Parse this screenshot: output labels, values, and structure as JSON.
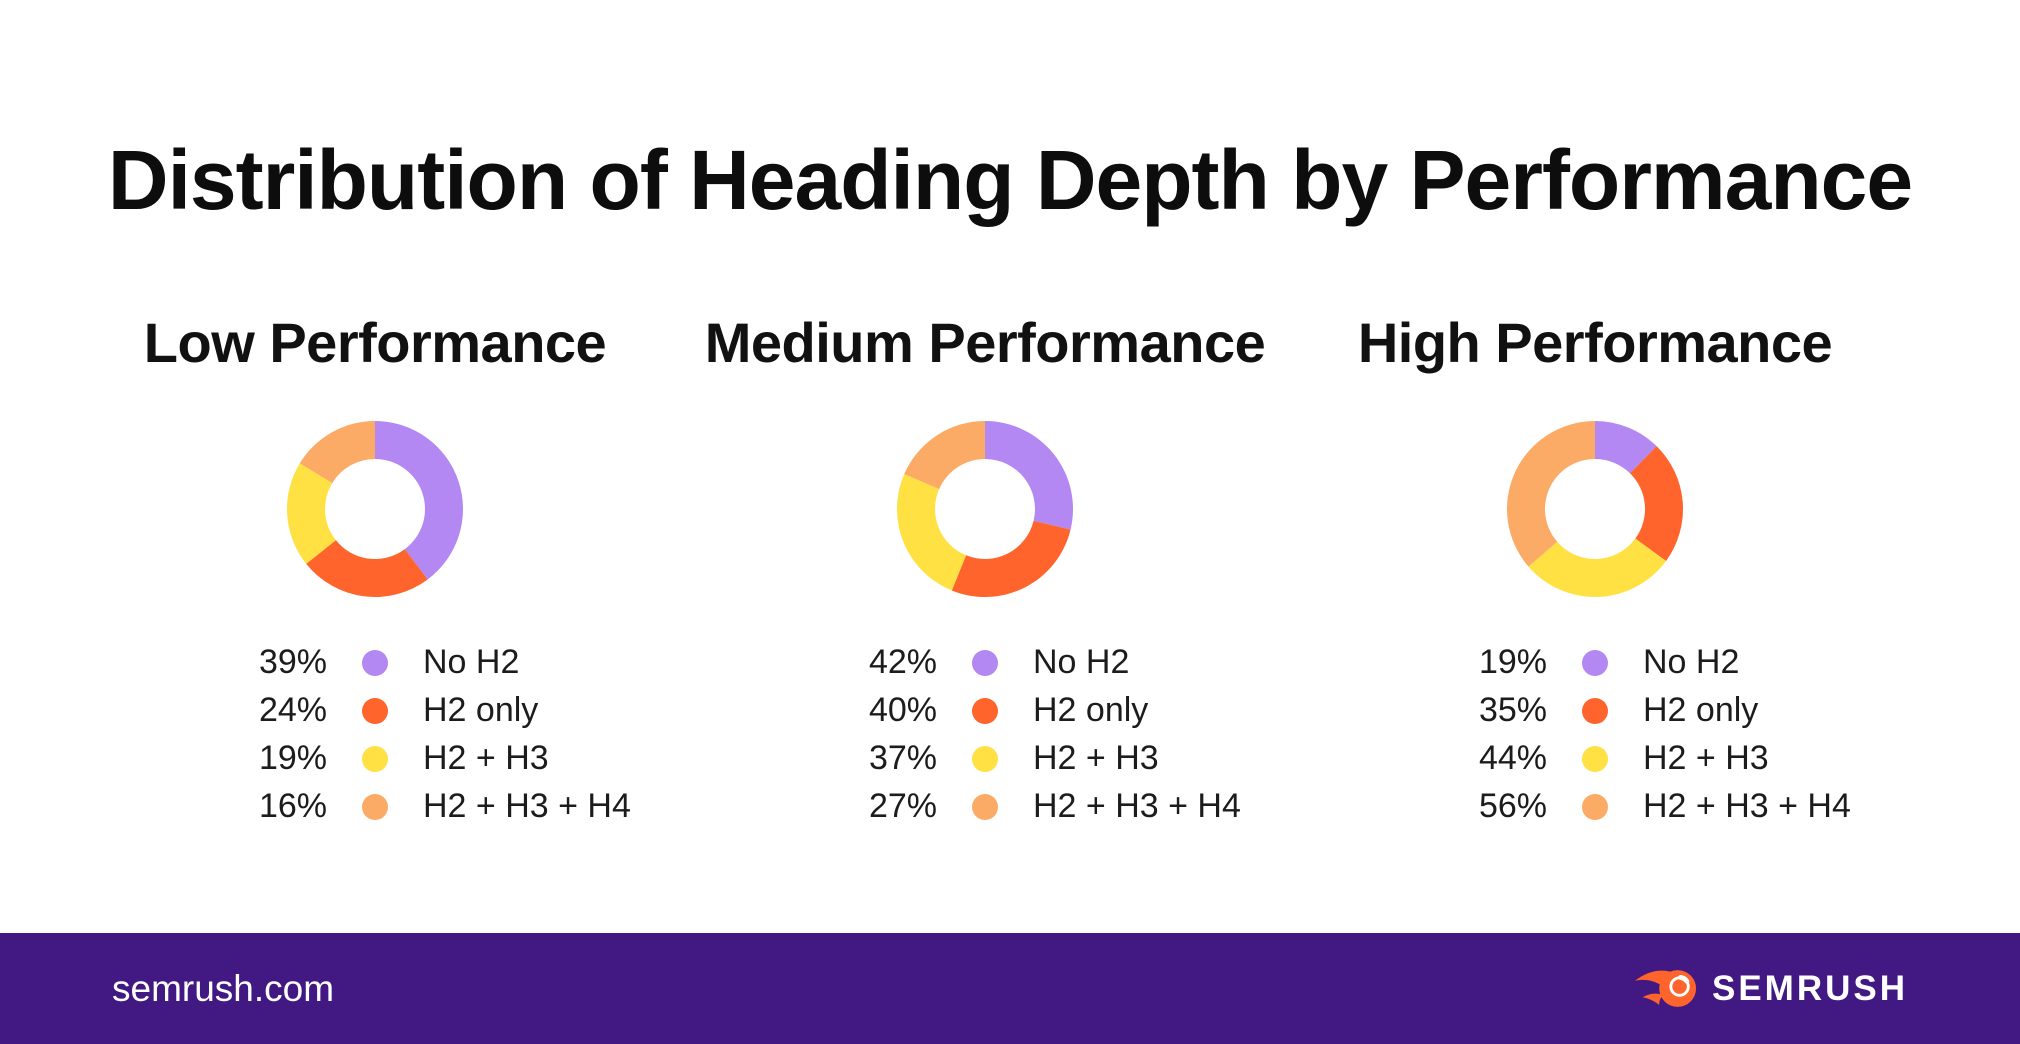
{
  "title": "Distribution of Heading Depth by Performance",
  "colors": {
    "accent_purple": "#b388f2",
    "accent_orange": "#ff642d",
    "accent_yellow": "#ffe143",
    "accent_peach": "#fbab66",
    "footer_background": "#421983",
    "text": "#0d0d0d"
  },
  "chart_data": [
    {
      "type": "pie",
      "donut": true,
      "title": "Low Performance",
      "categories": [
        "No H2",
        "H2 only",
        "H2 + H3",
        "H2 + H3 + H4"
      ],
      "values": [
        39,
        24,
        19,
        16
      ],
      "unit": "%",
      "start_angle": "top",
      "direction": "clockwise",
      "colors": [
        "#b388f2",
        "#ff642d",
        "#ffe143",
        "#fbab66"
      ],
      "legend_position": "below",
      "legend": [
        {
          "value": "39%",
          "label": "No H2"
        },
        {
          "value": "24%",
          "label": "H2 only"
        },
        {
          "value": "19%",
          "label": "H2 + H3"
        },
        {
          "value": "16%",
          "label": "H2 + H3 + H4"
        }
      ]
    },
    {
      "type": "pie",
      "donut": true,
      "title": "Medium Performance",
      "categories": [
        "No H2",
        "H2 only",
        "H2 + H3",
        "H2 + H3 + H4"
      ],
      "values": [
        42,
        40,
        37,
        27
      ],
      "unit": "%",
      "start_angle": "top",
      "direction": "clockwise",
      "colors": [
        "#b388f2",
        "#ff642d",
        "#ffe143",
        "#fbab66"
      ],
      "legend_position": "below",
      "legend": [
        {
          "value": "42%",
          "label": "No H2"
        },
        {
          "value": "40%",
          "label": "H2 only"
        },
        {
          "value": "37%",
          "label": "H2 + H3"
        },
        {
          "value": "27%",
          "label": "H2 + H3 + H4"
        }
      ]
    },
    {
      "type": "pie",
      "donut": true,
      "title": "High Performance",
      "categories": [
        "No H2",
        "H2 only",
        "H2 + H3",
        "H2 + H3 + H4"
      ],
      "values": [
        19,
        35,
        44,
        56
      ],
      "unit": "%",
      "start_angle": "top",
      "direction": "clockwise",
      "colors": [
        "#b388f2",
        "#ff642d",
        "#ffe143",
        "#fbab66"
      ],
      "legend_position": "below",
      "legend": [
        {
          "value": "19%",
          "label": "No H2"
        },
        {
          "value": "35%",
          "label": "H2 only"
        },
        {
          "value": "44%",
          "label": "H2 + H3"
        },
        {
          "value": "56%",
          "label": "H2 + H3 + H4"
        }
      ]
    }
  ],
  "footer": {
    "site": "semrush.com",
    "brand": "SEMRUSH",
    "background": "#421983",
    "logo_color": "#ff642d"
  }
}
